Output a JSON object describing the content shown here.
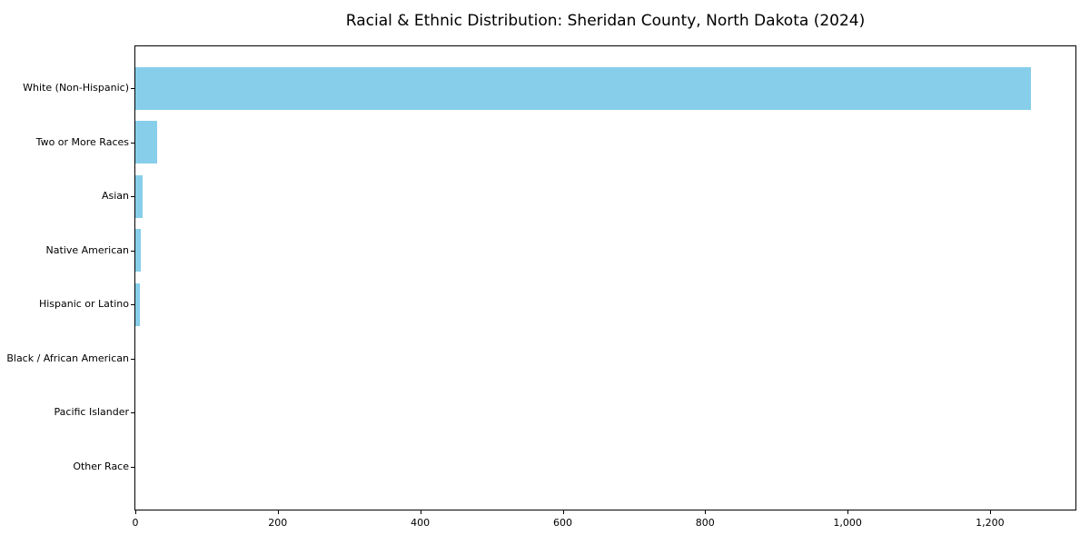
{
  "figure": {
    "background_color": "#ffffff"
  },
  "chart_data": {
    "type": "bar",
    "orientation": "horizontal",
    "title": "Racial & Ethnic Distribution: Sheridan County, North Dakota (2024)",
    "categories": [
      "White (Non-Hispanic)",
      "Two or More Races",
      "Asian",
      "Native American",
      "Hispanic or Latino",
      "Black / African American",
      "Pacific Islander",
      "Other Race"
    ],
    "values": [
      1257,
      30,
      10,
      7,
      6,
      0,
      0,
      0
    ],
    "xlabel": "",
    "ylabel": "",
    "xlim": [
      0,
      1320
    ],
    "x_ticks": [
      0,
      200,
      400,
      600,
      800,
      1000,
      1200
    ],
    "x_tick_labels": [
      "0",
      "200",
      "400",
      "600",
      "800",
      "1,000",
      "1,200"
    ],
    "grid": false,
    "legend": false,
    "bar_color": "#87CEEB",
    "spine_color": "#000000",
    "text_color": "#000000"
  }
}
